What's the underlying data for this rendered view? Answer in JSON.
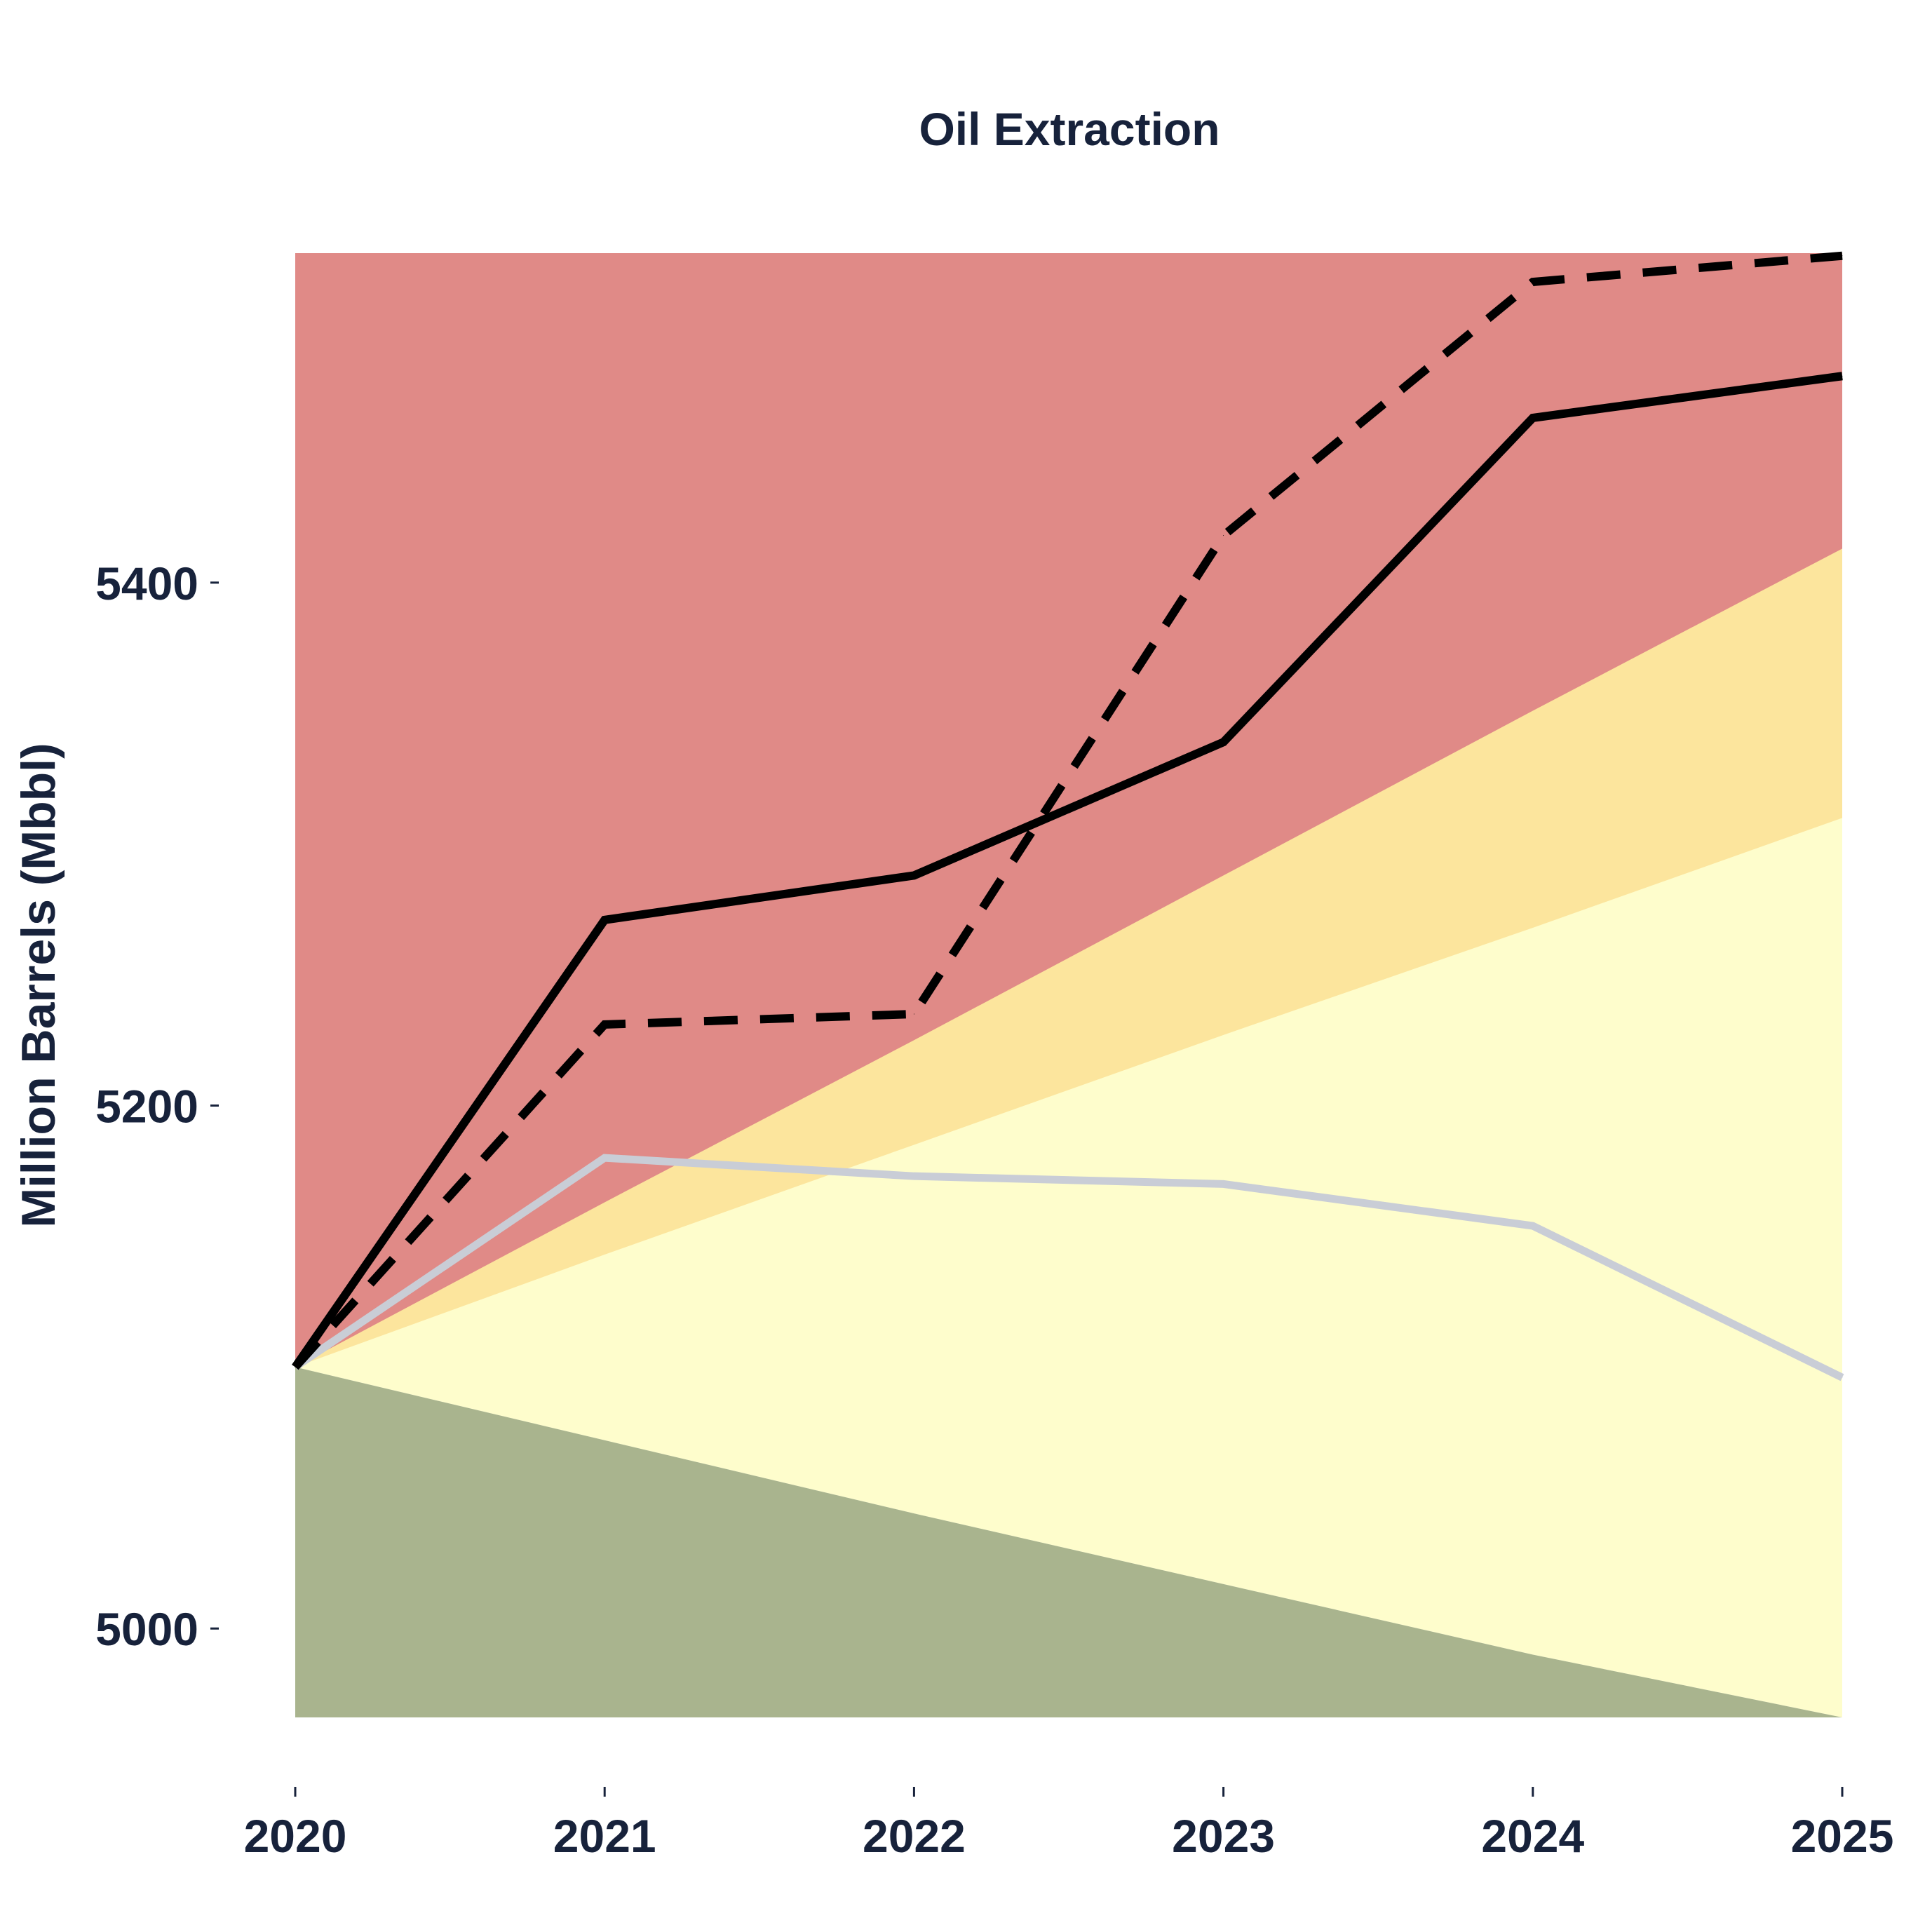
{
  "chart_data": {
    "type": "line",
    "title": "Oil Extraction",
    "xlabel": "",
    "ylabel": "Million Barrels (Mbbl)",
    "x": [
      "2020",
      "2021",
      "2022",
      "2023",
      "2024",
      "2025"
    ],
    "yticks": [
      "5000",
      "5200",
      "5400"
    ],
    "ylim": [
      4966,
      5526
    ],
    "grid": false,
    "legend": "none",
    "bands": [
      {
        "fill": "#e08a87",
        "lower": [
          5100,
          5100,
          5100,
          5100,
          5100,
          5100
        ],
        "upper": [
          5526,
          5526,
          5526,
          5526,
          5526,
          5526
        ]
      },
      {
        "fill": "#fce59d",
        "lower": [
          5100,
          5100,
          5100,
          5100,
          5100,
          5100
        ],
        "upper": [
          5100,
          5163,
          5225,
          5288,
          5351,
          5413
        ]
      },
      {
        "fill": "#fefdcc",
        "lower": [
          5100,
          5072,
          5044,
          5017,
          4990,
          4966
        ],
        "upper": [
          5100,
          5143,
          5185,
          5227,
          5268,
          5310
        ]
      },
      {
        "fill": "#a9b48e",
        "lower": [
          4966,
          4966,
          4966,
          4966,
          4966,
          4966
        ],
        "upper": [
          5100,
          5072,
          5044,
          5017,
          4990,
          4966
        ]
      }
    ],
    "series": [
      {
        "values": [
          5100,
          5271,
          5288,
          5339,
          5463,
          5479
        ],
        "color": "#000000",
        "style": "solid"
      },
      {
        "values": [
          5100,
          5231,
          5235,
          5418,
          5515,
          5525
        ],
        "color": "#000000",
        "style": "dashed"
      },
      {
        "values": [
          5100,
          5180,
          5173,
          5170,
          5154,
          5096
        ],
        "color": "#c9cdd6",
        "style": "solid"
      }
    ]
  }
}
